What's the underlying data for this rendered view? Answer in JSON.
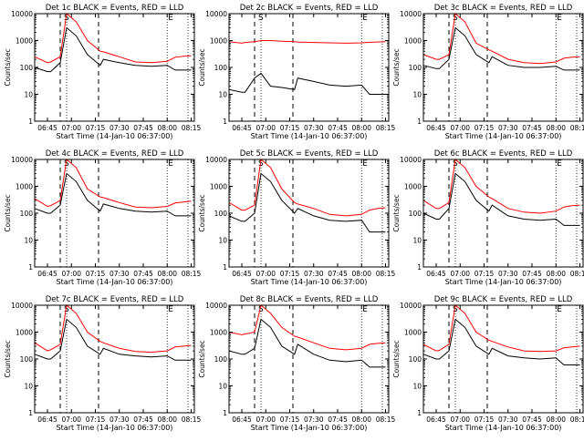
{
  "figure": {
    "xlabel": "Start Time (14-Jan-10 06:37:00)",
    "ylabel": "Counts/sec",
    "x_ticks": [
      "06:45",
      "07:00",
      "07:15",
      "07:30",
      "07:45",
      "08:00",
      "08:15"
    ],
    "y_ticks": [
      "1",
      "10",
      "100",
      "1000",
      "10000"
    ],
    "legend_text": "BLACK = Events, RED = LLD",
    "colors": {
      "events": "#000000",
      "lld": "#ff0000",
      "axes": "#000000",
      "background": "#ffffff"
    }
  },
  "chart_data": [
    {
      "type": "line",
      "title": "Det 1c BLACK = Events, RED = LLD",
      "x": [
        "06:37",
        "06:45",
        "06:47",
        "06:53",
        "06:57",
        "07:03",
        "07:10",
        "07:18",
        "07:20",
        "07:30",
        "07:40",
        "07:50",
        "08:00",
        "08:05",
        "08:10",
        "08:15"
      ],
      "series": [
        {
          "name": "LLD",
          "values": [
            250,
            150,
            160,
            250,
            10000,
            5000,
            1000,
            400,
            380,
            250,
            160,
            150,
            170,
            240,
            260,
            270
          ]
        },
        {
          "name": "Events",
          "values": [
            100,
            70,
            70,
            150,
            3000,
            1500,
            300,
            120,
            200,
            150,
            120,
            110,
            120,
            80,
            80,
            80
          ]
        }
      ],
      "markers": [
        "S",
        "E"
      ],
      "xlim": [
        "06:37",
        "08:17"
      ],
      "ylim": [
        1,
        10000
      ],
      "yscale": "log"
    },
    {
      "type": "line",
      "title": "Det 2c BLACK = Events, RED = LLD",
      "x": [
        "06:37",
        "06:45",
        "06:47",
        "06:53",
        "06:57",
        "07:03",
        "07:10",
        "07:18",
        "07:20",
        "07:30",
        "07:40",
        "07:50",
        "08:00",
        "08:05",
        "08:10",
        "08:15"
      ],
      "series": [
        {
          "name": "LLD",
          "values": [
            900,
            800,
            850,
            900,
            1000,
            1000,
            950,
            900,
            880,
            850,
            820,
            800,
            820,
            860,
            880,
            900
          ]
        },
        {
          "name": "Events",
          "values": [
            15,
            12,
            12,
            40,
            60,
            20,
            18,
            15,
            40,
            30,
            22,
            20,
            22,
            10,
            10,
            10
          ]
        }
      ],
      "markers": [
        "S",
        "E"
      ],
      "xlim": [
        "06:37",
        "08:17"
      ],
      "ylim": [
        1,
        10000
      ],
      "yscale": "log"
    },
    {
      "type": "line",
      "title": "Det 3c BLACK = Events, RED = LLD",
      "x": [
        "06:37",
        "06:45",
        "06:47",
        "06:53",
        "06:57",
        "07:03",
        "07:10",
        "07:18",
        "07:20",
        "07:30",
        "07:40",
        "07:50",
        "08:00",
        "08:05",
        "08:10",
        "08:15"
      ],
      "series": [
        {
          "name": "LLD",
          "values": [
            300,
            200,
            200,
            300,
            10000,
            5000,
            800,
            450,
            400,
            200,
            150,
            140,
            160,
            220,
            240,
            250
          ]
        },
        {
          "name": "Events",
          "values": [
            120,
            90,
            90,
            200,
            3000,
            1500,
            300,
            150,
            250,
            120,
            100,
            100,
            110,
            80,
            80,
            80
          ]
        }
      ],
      "markers": [
        "S",
        "E"
      ],
      "xlim": [
        "06:37",
        "08:17"
      ],
      "ylim": [
        1,
        10000
      ],
      "yscale": "log"
    },
    {
      "type": "line",
      "title": "Det 4c BLACK = Events, RED = LLD",
      "x": [
        "06:37",
        "06:45",
        "06:47",
        "06:53",
        "06:57",
        "07:03",
        "07:10",
        "07:18",
        "07:20",
        "07:30",
        "07:40",
        "07:50",
        "08:00",
        "08:05",
        "08:10",
        "08:15"
      ],
      "series": [
        {
          "name": "LLD",
          "values": [
            350,
            180,
            190,
            300,
            10000,
            5000,
            800,
            400,
            380,
            250,
            170,
            160,
            180,
            240,
            260,
            280
          ]
        },
        {
          "name": "Events",
          "values": [
            150,
            100,
            100,
            200,
            3000,
            1500,
            300,
            120,
            220,
            150,
            120,
            110,
            120,
            80,
            80,
            80
          ]
        }
      ],
      "markers": [
        "S",
        "E"
      ],
      "xlim": [
        "06:37",
        "08:17"
      ],
      "ylim": [
        1,
        10000
      ],
      "yscale": "log"
    },
    {
      "type": "line",
      "title": "Det 5c BLACK = Events, RED = LLD",
      "x": [
        "06:37",
        "06:45",
        "06:47",
        "06:53",
        "06:57",
        "07:03",
        "07:10",
        "07:18",
        "07:20",
        "07:30",
        "07:40",
        "07:50",
        "08:00",
        "08:05",
        "08:10",
        "08:15"
      ],
      "series": [
        {
          "name": "LLD",
          "values": [
            250,
            130,
            130,
            200,
            10000,
            5000,
            800,
            250,
            220,
            150,
            90,
            80,
            90,
            130,
            150,
            160
          ]
        },
        {
          "name": "Events",
          "values": [
            80,
            50,
            50,
            100,
            3000,
            1500,
            300,
            100,
            150,
            80,
            55,
            50,
            55,
            20,
            20,
            20
          ]
        }
      ],
      "markers": [
        "S",
        "E"
      ],
      "xlim": [
        "06:37",
        "08:17"
      ],
      "ylim": [
        1,
        10000
      ],
      "yscale": "log"
    },
    {
      "type": "line",
      "title": "Det 6c BLACK = Events, RED = LLD",
      "x": [
        "06:37",
        "06:45",
        "06:47",
        "06:53",
        "06:57",
        "07:03",
        "07:10",
        "07:18",
        "07:20",
        "07:30",
        "07:40",
        "07:50",
        "08:00",
        "08:05",
        "08:10",
        "08:15"
      ],
      "series": [
        {
          "name": "LLD",
          "values": [
            300,
            150,
            150,
            250,
            10000,
            5000,
            1000,
            400,
            350,
            150,
            110,
            100,
            120,
            170,
            190,
            200
          ]
        },
        {
          "name": "Events",
          "values": [
            100,
            60,
            60,
            150,
            3000,
            1500,
            300,
            120,
            200,
            80,
            60,
            55,
            60,
            35,
            35,
            35
          ]
        }
      ],
      "markers": [
        "S",
        "E"
      ],
      "xlim": [
        "06:37",
        "08:17"
      ],
      "ylim": [
        1,
        10000
      ],
      "yscale": "log"
    },
    {
      "type": "line",
      "title": "Det 7c BLACK = Events, RED = LLD",
      "x": [
        "06:37",
        "06:45",
        "06:47",
        "06:53",
        "06:57",
        "07:03",
        "07:10",
        "07:18",
        "07:20",
        "07:30",
        "07:40",
        "07:50",
        "08:00",
        "08:05",
        "08:10",
        "08:15"
      ],
      "series": [
        {
          "name": "LLD",
          "values": [
            400,
            200,
            220,
            350,
            10000,
            5000,
            1000,
            450,
            400,
            250,
            190,
            180,
            200,
            280,
            300,
            320
          ]
        },
        {
          "name": "Events",
          "values": [
            150,
            100,
            100,
            200,
            3000,
            1500,
            300,
            150,
            250,
            150,
            130,
            120,
            130,
            90,
            90,
            90
          ]
        }
      ],
      "markers": [
        "S",
        "E"
      ],
      "xlim": [
        "06:37",
        "08:17"
      ],
      "ylim": [
        1,
        10000
      ],
      "yscale": "log"
    },
    {
      "type": "line",
      "title": "Det 8c BLACK = Events, RED = LLD",
      "x": [
        "06:37",
        "06:45",
        "06:47",
        "06:53",
        "06:57",
        "07:03",
        "07:10",
        "07:18",
        "07:20",
        "07:30",
        "07:40",
        "07:50",
        "08:00",
        "08:05",
        "08:10",
        "08:15"
      ],
      "series": [
        {
          "name": "LLD",
          "values": [
            1000,
            800,
            850,
            1000,
            10000,
            5000,
            1500,
            700,
            650,
            400,
            250,
            220,
            250,
            350,
            380,
            400
          ]
        },
        {
          "name": "Events",
          "values": [
            200,
            150,
            150,
            250,
            3000,
            1500,
            300,
            150,
            350,
            150,
            90,
            80,
            90,
            50,
            50,
            50
          ]
        }
      ],
      "markers": [
        "S",
        "E"
      ],
      "xlim": [
        "06:37",
        "08:17"
      ],
      "ylim": [
        1,
        10000
      ],
      "yscale": "log"
    },
    {
      "type": "line",
      "title": "Det 9c BLACK = Events, RED = LLD",
      "x": [
        "06:37",
        "06:45",
        "06:47",
        "06:53",
        "06:57",
        "07:03",
        "07:10",
        "07:18",
        "07:20",
        "07:30",
        "07:40",
        "07:50",
        "08:00",
        "08:05",
        "08:10",
        "08:15"
      ],
      "series": [
        {
          "name": "LLD",
          "values": [
            350,
            200,
            210,
            350,
            10000,
            5000,
            1000,
            500,
            450,
            280,
            200,
            190,
            200,
            260,
            280,
            300
          ]
        },
        {
          "name": "Events",
          "values": [
            150,
            100,
            100,
            200,
            3000,
            1500,
            300,
            150,
            250,
            130,
            110,
            100,
            110,
            60,
            60,
            60
          ]
        }
      ],
      "markers": [
        "S",
        "E"
      ],
      "xlim": [
        "06:37",
        "08:17"
      ],
      "ylim": [
        1,
        10000
      ],
      "yscale": "log"
    }
  ]
}
